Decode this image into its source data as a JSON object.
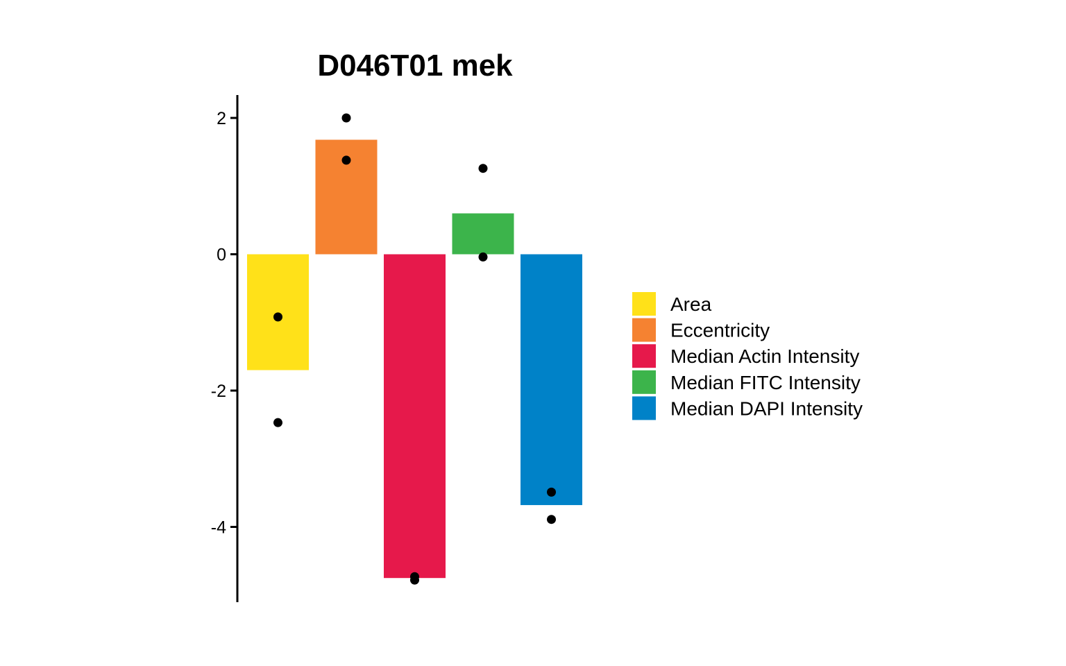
{
  "chart_data": {
    "type": "bar",
    "title": "D046T01 mek",
    "xlabel": "",
    "ylabel": "",
    "ylim": [
      -5.1,
      2.35
    ],
    "yticks": [
      2,
      0,
      -2,
      -4
    ],
    "grid": false,
    "legend_position": "right",
    "categories": [
      "Area",
      "Eccentricity",
      "Median Actin Intensity",
      "Median FITC Intensity",
      "Median DAPI Intensity"
    ],
    "colors": [
      "#FFE119",
      "#F58231",
      "#E6194B",
      "#3CB44B",
      "#0082C8"
    ],
    "values": [
      -1.7,
      1.68,
      -4.75,
      0.6,
      -3.68
    ],
    "points": [
      [
        -0.92,
        -2.47
      ],
      [
        2.0,
        1.38
      ],
      [
        -4.73,
        -4.78
      ],
      [
        1.26,
        -0.04
      ],
      [
        -3.49,
        -3.89
      ]
    ]
  }
}
